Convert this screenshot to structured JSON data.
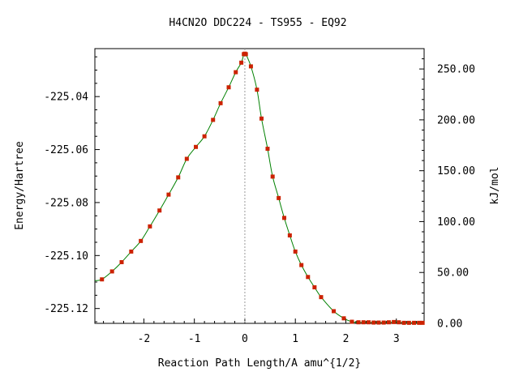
{
  "chart_data": {
    "type": "line",
    "title": "H4CN2O   DDC224 - TS955 - EQ92",
    "xlabel": "Reaction Path Length/A amu^{1/2}",
    "ylabel": "Energy/Hartree",
    "y2label": "kJ/mol",
    "xlim": [
      -2.97,
      3.55
    ],
    "ylim": [
      -225.1256,
      -225.0219
    ],
    "y2lim": [
      0,
      270.0
    ],
    "x_ticks": [
      -2,
      -1,
      0,
      1,
      2,
      3
    ],
    "y_ticks": [
      -225.04,
      -225.06,
      -225.08,
      -225.1,
      -225.12
    ],
    "y_tick_labels": [
      "-225.04",
      "-225.06",
      "-225.08",
      "-225.10",
      "-225.12"
    ],
    "y2_ticks": [
      0,
      50,
      100,
      150,
      200,
      250
    ],
    "y2_tick_labels": [
      "0.00",
      "50.00",
      "100.00",
      "150.00",
      "200.00",
      "250.00"
    ],
    "grid": false,
    "ts_marker_x": 0,
    "series": [
      {
        "color": "#008000",
        "marker_color": "#cc2200",
        "x": [
          -2.97,
          -2.83,
          -2.63,
          -2.44,
          -2.25,
          -2.06,
          -1.88,
          -1.69,
          -1.51,
          -1.32,
          -1.15,
          -0.97,
          -0.8,
          -0.63,
          -0.48,
          -0.32,
          -0.18,
          -0.07,
          -0.02,
          0.0,
          0.02,
          0.12,
          0.24,
          0.33,
          0.45,
          0.55,
          0.67,
          0.78,
          0.89,
          1.0,
          1.12,
          1.25,
          1.38,
          1.51,
          1.76,
          1.96,
          2.12,
          2.25,
          2.35,
          2.45,
          2.55,
          2.65,
          2.75,
          2.85,
          2.95,
          3.05,
          3.15,
          3.25,
          3.35,
          3.45,
          3.52
        ],
        "y": [
          -225.1095,
          -225.109,
          -225.106,
          -225.1025,
          -225.0985,
          -225.0945,
          -225.089,
          -225.083,
          -225.077,
          -225.0705,
          -225.0635,
          -225.059,
          -225.055,
          -225.0488,
          -225.0425,
          -225.0365,
          -225.0308,
          -225.0272,
          -225.024,
          -225.0238,
          -225.024,
          -225.0286,
          -225.0374,
          -225.0483,
          -225.0597,
          -225.0702,
          -225.0783,
          -225.0858,
          -225.0924,
          -225.0985,
          -225.1036,
          -225.1081,
          -225.112,
          -225.1157,
          -225.121,
          -225.1237,
          -225.125,
          -225.1252,
          -225.1252,
          -225.1252,
          -225.1253,
          -225.1253,
          -225.1253,
          -225.1252,
          -225.1251,
          -225.1252,
          -225.1254,
          -225.1254,
          -225.1254,
          -225.1254,
          -225.1254
        ],
        "marker_x": [
          -2.83,
          -2.63,
          -2.44,
          -2.25,
          -2.06,
          -1.88,
          -1.69,
          -1.51,
          -1.32,
          -1.15,
          -0.97,
          -0.8,
          -0.63,
          -0.48,
          -0.32,
          -0.18,
          -0.07,
          -0.02,
          0.0,
          0.02,
          0.12,
          0.24,
          0.33,
          0.45,
          0.55,
          0.67,
          0.78,
          0.89,
          1.0,
          1.12,
          1.25,
          1.38,
          1.51,
          1.76,
          1.96,
          2.12,
          2.25,
          2.35,
          2.45,
          2.55,
          2.65,
          2.75,
          2.85,
          2.95,
          3.05,
          3.15,
          3.25,
          3.35,
          3.45,
          3.52
        ]
      }
    ]
  }
}
